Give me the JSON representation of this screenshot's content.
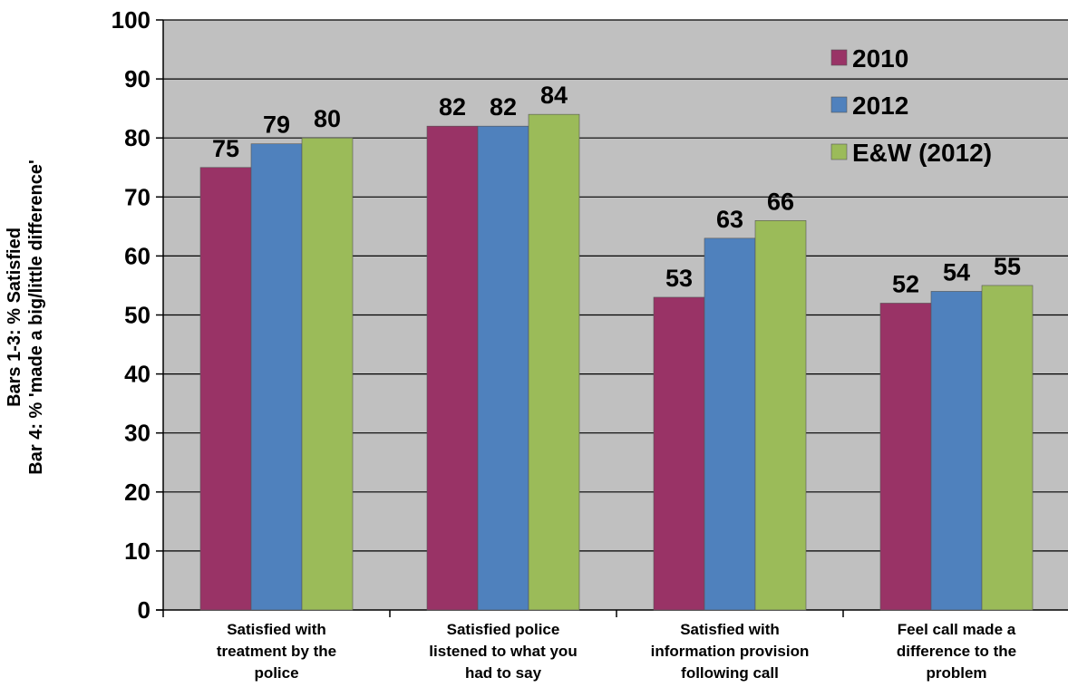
{
  "chart_data": {
    "type": "bar",
    "categories": [
      [
        "Satisfied with",
        "treatment by the",
        "police"
      ],
      [
        "Satisfied police",
        "listened to what you",
        "had to say"
      ],
      [
        "Satisfied with",
        "information provision",
        "following call"
      ],
      [
        "Feel call made a",
        "difference to the",
        "problem"
      ]
    ],
    "series": [
      {
        "name": "2010",
        "values": [
          75,
          82,
          53,
          52
        ]
      },
      {
        "name": "2012",
        "values": [
          79,
          82,
          63,
          54
        ]
      },
      {
        "name": "E&W (2012)",
        "values": [
          80,
          84,
          66,
          55
        ]
      }
    ],
    "ylabel": [
      "Bars 1-3: % Satisfied",
      "Bar 4: % 'made a big/little difference'"
    ],
    "ylim": [
      0,
      100
    ],
    "yticks": [
      0,
      10,
      20,
      30,
      40,
      50,
      60,
      70,
      80,
      90,
      100
    ],
    "grid": true,
    "legend_position": "top-right",
    "colors": {
      "series": [
        "#993366",
        "#4f81bd",
        "#9bbb59"
      ],
      "plot_background": "#c0c0c0",
      "gridline": "#000000"
    }
  }
}
